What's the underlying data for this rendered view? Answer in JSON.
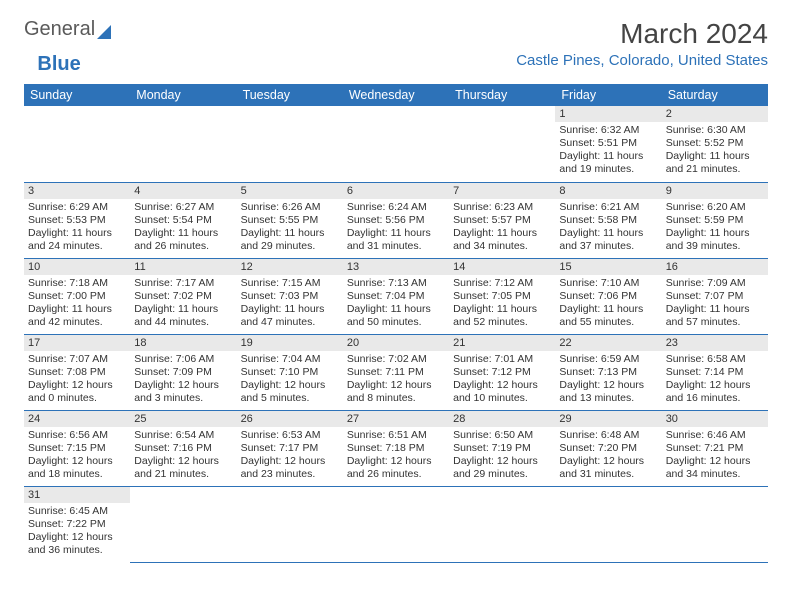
{
  "brand": {
    "part1": "General",
    "part2": "Blue"
  },
  "title": "March 2024",
  "location": "Castle Pines, Colorado, United States",
  "colors": {
    "accent": "#2d72b8",
    "header_bg": "#2d72b8",
    "daynum_bg": "#e9e9e9",
    "text": "#333333",
    "bg": "#ffffff"
  },
  "day_headers": [
    "Sunday",
    "Monday",
    "Tuesday",
    "Wednesday",
    "Thursday",
    "Friday",
    "Saturday"
  ],
  "weeks": [
    [
      {
        "n": "",
        "lines": [
          "",
          "",
          "",
          ""
        ]
      },
      {
        "n": "",
        "lines": [
          "",
          "",
          "",
          ""
        ]
      },
      {
        "n": "",
        "lines": [
          "",
          "",
          "",
          ""
        ]
      },
      {
        "n": "",
        "lines": [
          "",
          "",
          "",
          ""
        ]
      },
      {
        "n": "",
        "lines": [
          "",
          "",
          "",
          ""
        ]
      },
      {
        "n": "1",
        "lines": [
          "Sunrise: 6:32 AM",
          "Sunset: 5:51 PM",
          "Daylight: 11 hours",
          "and 19 minutes."
        ]
      },
      {
        "n": "2",
        "lines": [
          "Sunrise: 6:30 AM",
          "Sunset: 5:52 PM",
          "Daylight: 11 hours",
          "and 21 minutes."
        ]
      }
    ],
    [
      {
        "n": "3",
        "lines": [
          "Sunrise: 6:29 AM",
          "Sunset: 5:53 PM",
          "Daylight: 11 hours",
          "and 24 minutes."
        ]
      },
      {
        "n": "4",
        "lines": [
          "Sunrise: 6:27 AM",
          "Sunset: 5:54 PM",
          "Daylight: 11 hours",
          "and 26 minutes."
        ]
      },
      {
        "n": "5",
        "lines": [
          "Sunrise: 6:26 AM",
          "Sunset: 5:55 PM",
          "Daylight: 11 hours",
          "and 29 minutes."
        ]
      },
      {
        "n": "6",
        "lines": [
          "Sunrise: 6:24 AM",
          "Sunset: 5:56 PM",
          "Daylight: 11 hours",
          "and 31 minutes."
        ]
      },
      {
        "n": "7",
        "lines": [
          "Sunrise: 6:23 AM",
          "Sunset: 5:57 PM",
          "Daylight: 11 hours",
          "and 34 minutes."
        ]
      },
      {
        "n": "8",
        "lines": [
          "Sunrise: 6:21 AM",
          "Sunset: 5:58 PM",
          "Daylight: 11 hours",
          "and 37 minutes."
        ]
      },
      {
        "n": "9",
        "lines": [
          "Sunrise: 6:20 AM",
          "Sunset: 5:59 PM",
          "Daylight: 11 hours",
          "and 39 minutes."
        ]
      }
    ],
    [
      {
        "n": "10",
        "lines": [
          "Sunrise: 7:18 AM",
          "Sunset: 7:00 PM",
          "Daylight: 11 hours",
          "and 42 minutes."
        ]
      },
      {
        "n": "11",
        "lines": [
          "Sunrise: 7:17 AM",
          "Sunset: 7:02 PM",
          "Daylight: 11 hours",
          "and 44 minutes."
        ]
      },
      {
        "n": "12",
        "lines": [
          "Sunrise: 7:15 AM",
          "Sunset: 7:03 PM",
          "Daylight: 11 hours",
          "and 47 minutes."
        ]
      },
      {
        "n": "13",
        "lines": [
          "Sunrise: 7:13 AM",
          "Sunset: 7:04 PM",
          "Daylight: 11 hours",
          "and 50 minutes."
        ]
      },
      {
        "n": "14",
        "lines": [
          "Sunrise: 7:12 AM",
          "Sunset: 7:05 PM",
          "Daylight: 11 hours",
          "and 52 minutes."
        ]
      },
      {
        "n": "15",
        "lines": [
          "Sunrise: 7:10 AM",
          "Sunset: 7:06 PM",
          "Daylight: 11 hours",
          "and 55 minutes."
        ]
      },
      {
        "n": "16",
        "lines": [
          "Sunrise: 7:09 AM",
          "Sunset: 7:07 PM",
          "Daylight: 11 hours",
          "and 57 minutes."
        ]
      }
    ],
    [
      {
        "n": "17",
        "lines": [
          "Sunrise: 7:07 AM",
          "Sunset: 7:08 PM",
          "Daylight: 12 hours",
          "and 0 minutes."
        ]
      },
      {
        "n": "18",
        "lines": [
          "Sunrise: 7:06 AM",
          "Sunset: 7:09 PM",
          "Daylight: 12 hours",
          "and 3 minutes."
        ]
      },
      {
        "n": "19",
        "lines": [
          "Sunrise: 7:04 AM",
          "Sunset: 7:10 PM",
          "Daylight: 12 hours",
          "and 5 minutes."
        ]
      },
      {
        "n": "20",
        "lines": [
          "Sunrise: 7:02 AM",
          "Sunset: 7:11 PM",
          "Daylight: 12 hours",
          "and 8 minutes."
        ]
      },
      {
        "n": "21",
        "lines": [
          "Sunrise: 7:01 AM",
          "Sunset: 7:12 PM",
          "Daylight: 12 hours",
          "and 10 minutes."
        ]
      },
      {
        "n": "22",
        "lines": [
          "Sunrise: 6:59 AM",
          "Sunset: 7:13 PM",
          "Daylight: 12 hours",
          "and 13 minutes."
        ]
      },
      {
        "n": "23",
        "lines": [
          "Sunrise: 6:58 AM",
          "Sunset: 7:14 PM",
          "Daylight: 12 hours",
          "and 16 minutes."
        ]
      }
    ],
    [
      {
        "n": "24",
        "lines": [
          "Sunrise: 6:56 AM",
          "Sunset: 7:15 PM",
          "Daylight: 12 hours",
          "and 18 minutes."
        ]
      },
      {
        "n": "25",
        "lines": [
          "Sunrise: 6:54 AM",
          "Sunset: 7:16 PM",
          "Daylight: 12 hours",
          "and 21 minutes."
        ]
      },
      {
        "n": "26",
        "lines": [
          "Sunrise: 6:53 AM",
          "Sunset: 7:17 PM",
          "Daylight: 12 hours",
          "and 23 minutes."
        ]
      },
      {
        "n": "27",
        "lines": [
          "Sunrise: 6:51 AM",
          "Sunset: 7:18 PM",
          "Daylight: 12 hours",
          "and 26 minutes."
        ]
      },
      {
        "n": "28",
        "lines": [
          "Sunrise: 6:50 AM",
          "Sunset: 7:19 PM",
          "Daylight: 12 hours",
          "and 29 minutes."
        ]
      },
      {
        "n": "29",
        "lines": [
          "Sunrise: 6:48 AM",
          "Sunset: 7:20 PM",
          "Daylight: 12 hours",
          "and 31 minutes."
        ]
      },
      {
        "n": "30",
        "lines": [
          "Sunrise: 6:46 AM",
          "Sunset: 7:21 PM",
          "Daylight: 12 hours",
          "and 34 minutes."
        ]
      }
    ],
    [
      {
        "n": "31",
        "lines": [
          "Sunrise: 6:45 AM",
          "Sunset: 7:22 PM",
          "Daylight: 12 hours",
          "and 36 minutes."
        ]
      },
      {
        "n": "",
        "lines": [
          "",
          "",
          "",
          ""
        ]
      },
      {
        "n": "",
        "lines": [
          "",
          "",
          "",
          ""
        ]
      },
      {
        "n": "",
        "lines": [
          "",
          "",
          "",
          ""
        ]
      },
      {
        "n": "",
        "lines": [
          "",
          "",
          "",
          ""
        ]
      },
      {
        "n": "",
        "lines": [
          "",
          "",
          "",
          ""
        ]
      },
      {
        "n": "",
        "lines": [
          "",
          "",
          "",
          ""
        ]
      }
    ]
  ]
}
